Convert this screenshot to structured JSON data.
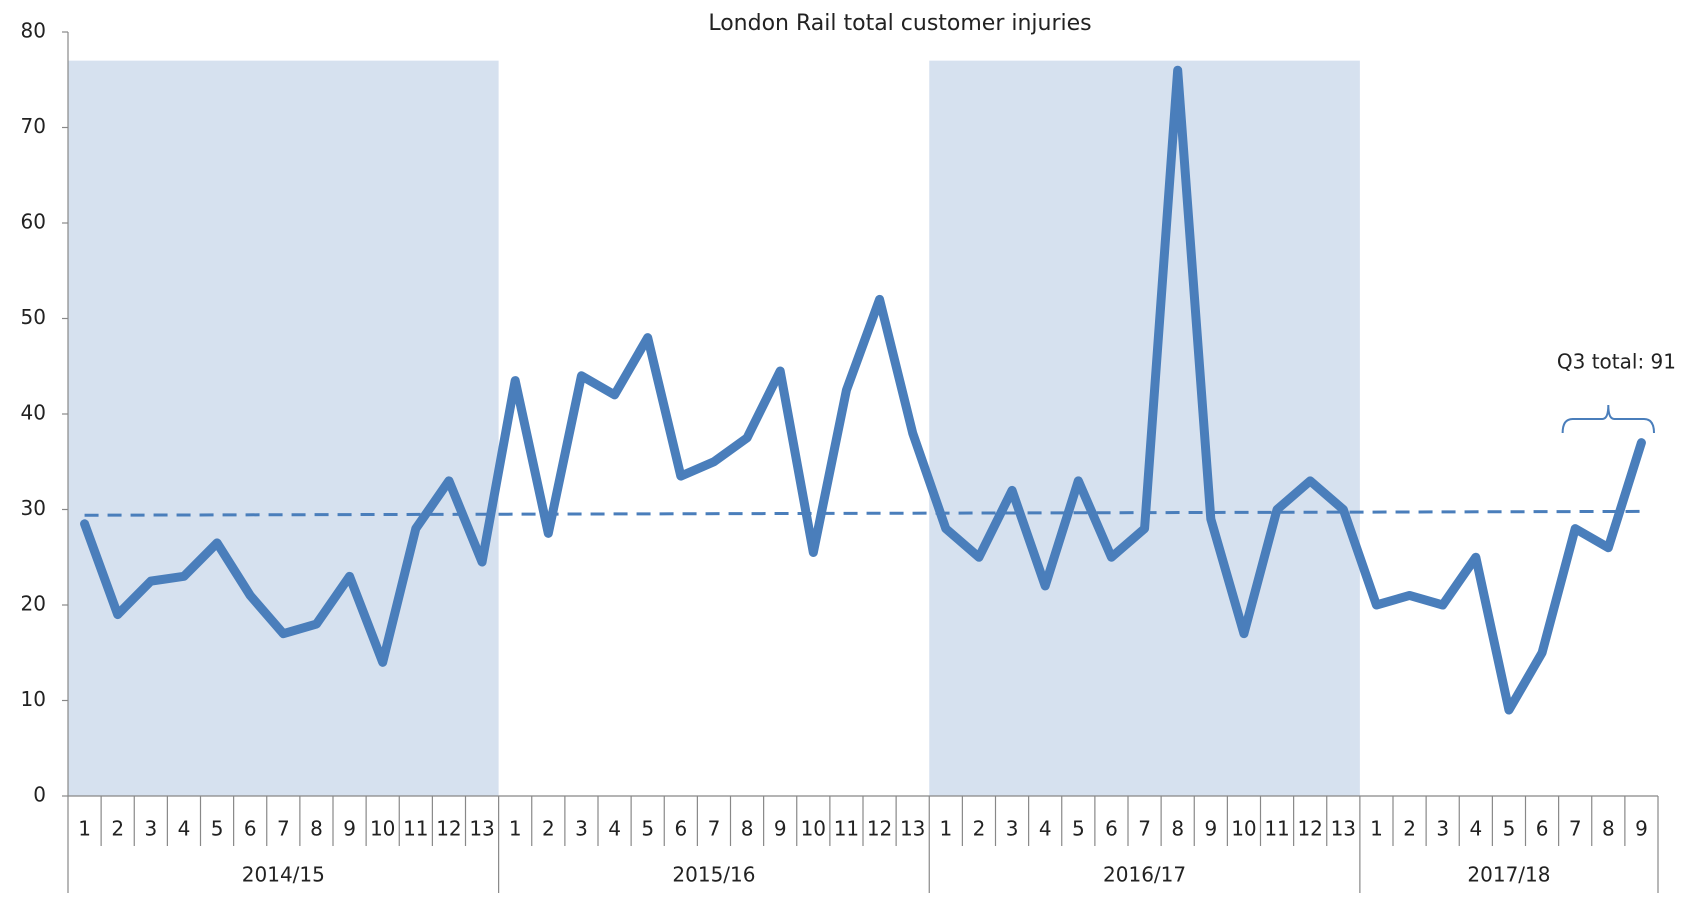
{
  "chart_data": {
    "type": "line",
    "title": "London Rail total customer injuries",
    "color": "#4a7ebb",
    "shade_color": "#d6e1ef",
    "shaded_groups": [
      0,
      2
    ],
    "ylim": [
      0,
      80
    ],
    "yticks": [
      0,
      10,
      20,
      30,
      40,
      50,
      60,
      70,
      80
    ],
    "groups": [
      {
        "name": "2014/15",
        "categories": [
          "1",
          "2",
          "3",
          "4",
          "5",
          "6",
          "7",
          "8",
          "9",
          "10",
          "11",
          "12",
          "13"
        ],
        "values": [
          28.5,
          19,
          22.5,
          23,
          26.5,
          21,
          17,
          18,
          23,
          14,
          28,
          33,
          24.5
        ]
      },
      {
        "name": "2015/16",
        "categories": [
          "1",
          "2",
          "3",
          "4",
          "5",
          "6",
          "7",
          "8",
          "9",
          "10",
          "11",
          "12",
          "13"
        ],
        "values": [
          43.5,
          27.5,
          44,
          42,
          48,
          33.5,
          35,
          37.5,
          44.5,
          25.5,
          42.5,
          52,
          38
        ]
      },
      {
        "name": "2016/17",
        "categories": [
          "1",
          "2",
          "3",
          "4",
          "5",
          "6",
          "7",
          "8",
          "9",
          "10",
          "11",
          "12",
          "13"
        ],
        "values": [
          28,
          25,
          32,
          22,
          33,
          25,
          28,
          76,
          29,
          17,
          30,
          33,
          30
        ]
      },
      {
        "name": "2017/18",
        "categories": [
          "1",
          "2",
          "3",
          "4",
          "5",
          "6",
          "7",
          "8",
          "9"
        ],
        "values": [
          20,
          21,
          20,
          25,
          9,
          15,
          28,
          26,
          37
        ]
      }
    ],
    "reference_line": {
      "start": 29.4,
      "end": 29.8,
      "color": "#4a7ebb"
    },
    "annotation": "Q3 total: 91"
  }
}
